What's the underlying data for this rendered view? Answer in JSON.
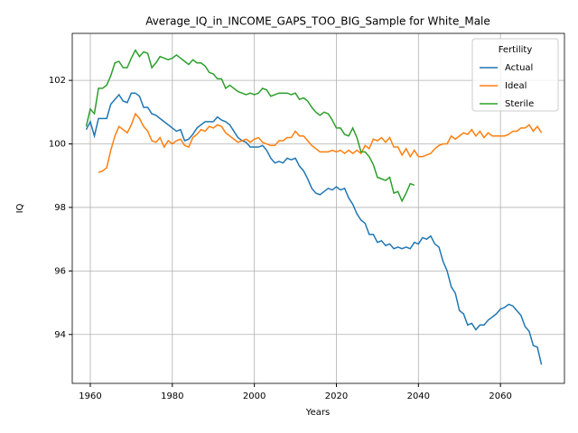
{
  "chart_data": {
    "type": "line",
    "title": "Average_IQ_in_INCOME_GAPS_TOO_BIG_Sample for White_Male",
    "xlabel": "Years",
    "ylabel": "IQ",
    "legend_title": "Fertility",
    "legend": "upper right",
    "grid": true,
    "x": [
      1959,
      1960,
      1961,
      1962,
      1963,
      1964,
      1965,
      1966,
      1967,
      1968,
      1969,
      1970,
      1971,
      1972,
      1973,
      1974,
      1975,
      1976,
      1977,
      1978,
      1979,
      1980,
      1981,
      1982,
      1983,
      1984,
      1985,
      1986,
      1987,
      1988,
      1989,
      1990,
      1991,
      1992,
      1993,
      1994,
      1995,
      1996,
      1997,
      1998,
      1999,
      2000,
      2001,
      2002,
      2003,
      2004,
      2005,
      2006,
      2007,
      2008,
      2009,
      2010,
      2011,
      2012,
      2013,
      2014,
      2015,
      2016,
      2017,
      2018,
      2019,
      2020,
      2021,
      2022,
      2023,
      2024,
      2025,
      2026,
      2027,
      2028,
      2029,
      2030,
      2031,
      2032,
      2033,
      2034,
      2035,
      2036,
      2037,
      2038,
      2039,
      2040,
      2041,
      2042,
      2043,
      2044,
      2045,
      2046,
      2047,
      2048,
      2049,
      2050,
      2051,
      2052,
      2053,
      2054,
      2055,
      2056,
      2057,
      2058,
      2059,
      2060,
      2061,
      2062,
      2063,
      2064,
      2065,
      2066,
      2067,
      2068,
      2069,
      2070
    ],
    "series": [
      {
        "name": "Actual",
        "color": "#1f77b4",
        "values": [
          100.45,
          100.7,
          100.25,
          100.8,
          100.8,
          100.8,
          101.25,
          101.4,
          101.55,
          101.35,
          101.3,
          101.6,
          101.6,
          101.5,
          101.15,
          101.15,
          100.95,
          100.9,
          100.8,
          100.7,
          100.6,
          100.5,
          100.4,
          100.45,
          100.1,
          100.15,
          100.3,
          100.5,
          100.6,
          100.7,
          100.7,
          100.7,
          100.85,
          100.75,
          100.7,
          100.6,
          100.4,
          100.2,
          100.1,
          100.05,
          99.9,
          99.9,
          99.9,
          99.95,
          99.8,
          99.55,
          99.4,
          99.45,
          99.4,
          99.55,
          99.5,
          99.55,
          99.3,
          99.15,
          98.9,
          98.6,
          98.45,
          98.4,
          98.5,
          98.6,
          98.55,
          98.65,
          98.55,
          98.6,
          98.3,
          98.1,
          97.8,
          97.6,
          97.5,
          97.15,
          97.15,
          96.9,
          96.95,
          96.8,
          96.85,
          96.7,
          96.75,
          96.7,
          96.75,
          96.7,
          96.9,
          96.85,
          97.05,
          97.0,
          97.1,
          96.85,
          96.75,
          96.3,
          96.0,
          95.5,
          95.3,
          94.75,
          94.65,
          94.3,
          94.35,
          94.15,
          94.3,
          94.3,
          94.45,
          94.55,
          94.65,
          94.8,
          94.85,
          94.95,
          94.9,
          94.75,
          94.6,
          94.25,
          94.1,
          93.65,
          93.6,
          93.05
        ]
      },
      {
        "name": "Ideal",
        "color": "#ff7f0e",
        "values": [
          null,
          null,
          null,
          99.1,
          99.15,
          99.25,
          99.8,
          100.25,
          100.55,
          100.45,
          100.35,
          100.6,
          100.95,
          100.8,
          100.55,
          100.4,
          100.1,
          100.05,
          100.2,
          99.9,
          100.1,
          100.0,
          100.1,
          100.15,
          99.95,
          99.9,
          100.2,
          100.3,
          100.45,
          100.4,
          100.55,
          100.5,
          100.6,
          100.55,
          100.35,
          100.25,
          100.15,
          100.05,
          100.1,
          100.15,
          100.05,
          100.15,
          100.2,
          100.05,
          100.0,
          99.95,
          99.95,
          100.1,
          100.1,
          100.2,
          100.2,
          100.4,
          100.25,
          100.25,
          100.1,
          99.95,
          99.85,
          99.75,
          99.75,
          99.75,
          99.8,
          99.75,
          99.8,
          99.7,
          99.8,
          99.7,
          99.8,
          99.7,
          99.95,
          99.85,
          100.15,
          100.1,
          100.2,
          100.05,
          100.2,
          99.9,
          99.9,
          99.65,
          99.85,
          99.6,
          99.8,
          99.6,
          99.6,
          99.65,
          99.7,
          99.85,
          99.95,
          100.0,
          100.0,
          100.25,
          100.15,
          100.25,
          100.35,
          100.3,
          100.45,
          100.25,
          100.4,
          100.2,
          100.35,
          100.25,
          100.25,
          100.25,
          100.25,
          100.3,
          100.4,
          100.4,
          100.5,
          100.5,
          100.6,
          100.4,
          100.55,
          100.35
        ]
      },
      {
        "name": "Sterile",
        "color": "#2ca02c",
        "values": [
          100.55,
          101.1,
          100.95,
          101.75,
          101.75,
          101.85,
          102.15,
          102.55,
          102.6,
          102.4,
          102.4,
          102.7,
          102.95,
          102.75,
          102.9,
          102.85,
          102.4,
          102.55,
          102.75,
          102.7,
          102.65,
          102.7,
          102.8,
          102.7,
          102.6,
          102.5,
          102.65,
          102.55,
          102.55,
          102.45,
          102.25,
          102.2,
          102.05,
          102.05,
          101.75,
          101.85,
          101.75,
          101.65,
          101.6,
          101.55,
          101.6,
          101.55,
          101.6,
          101.75,
          101.7,
          101.5,
          101.55,
          101.6,
          101.6,
          101.6,
          101.55,
          101.6,
          101.4,
          101.45,
          101.35,
          101.15,
          101.0,
          100.9,
          101.0,
          100.95,
          100.75,
          100.5,
          100.5,
          100.3,
          100.25,
          100.5,
          100.2,
          99.75,
          99.75,
          99.6,
          99.35,
          98.95,
          98.9,
          98.85,
          98.95,
          98.45,
          98.5,
          98.2,
          98.45,
          98.75,
          98.7,
          null,
          null,
          null,
          null,
          null,
          null,
          null,
          null,
          null,
          null,
          null,
          null,
          null,
          null,
          null,
          null,
          null,
          null,
          null,
          null,
          null,
          null,
          null,
          null,
          null,
          null,
          null,
          null,
          null,
          null,
          null
        ]
      }
    ],
    "xlim": [
      1955.6,
      2075.6
    ],
    "xticks": [
      1960,
      1980,
      2000,
      2020,
      2040,
      2060
    ],
    "ylim": [
      92.46,
      103.48
    ],
    "yticks": [
      94,
      96,
      98,
      100,
      102
    ]
  }
}
